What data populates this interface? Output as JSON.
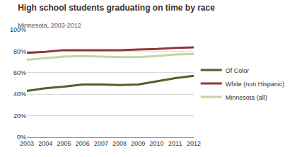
{
  "chart_data": {
    "type": "line",
    "title": "High school students graduating on time by race",
    "subtitle": "Minnesota, 2003-2012",
    "categories": [
      "2003",
      "2004",
      "2005",
      "2006",
      "2007",
      "2008",
      "2009",
      "2010",
      "2011",
      "2012"
    ],
    "series": [
      {
        "name": "Of Color",
        "color": "#4f6228",
        "values": [
          43,
          45.5,
          47,
          49,
          49,
          48.5,
          49,
          52,
          55,
          57
        ]
      },
      {
        "name": "White (non Hispanic)",
        "color": "#953735",
        "values": [
          78.5,
          79.5,
          81,
          81,
          81,
          81,
          81.5,
          82,
          83,
          83.5
        ]
      },
      {
        "name": "Minnesota (all)",
        "color": "#c3d69b",
        "values": [
          72,
          73.5,
          75,
          75.5,
          75,
          74.5,
          74.5,
          75.5,
          77,
          77.5
        ]
      }
    ],
    "ylim": [
      0,
      100
    ],
    "yticks": [
      {
        "value": 0,
        "label": "0%"
      },
      {
        "value": 20,
        "label": "20%"
      },
      {
        "value": 40,
        "label": "40%"
      },
      {
        "value": 60,
        "label": "60%"
      },
      {
        "value": 80,
        "label": "80%"
      },
      {
        "value": 100,
        "label": "100%"
      }
    ],
    "grid": true,
    "legend": "right"
  }
}
